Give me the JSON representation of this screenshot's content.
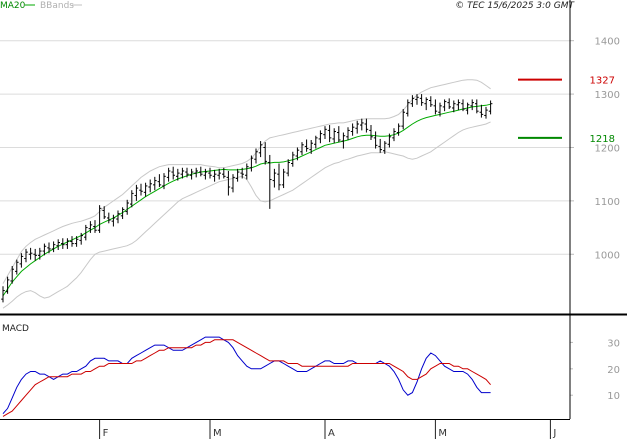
{
  "header": {
    "legend": [
      {
        "label": "MA20",
        "color": "#00aa00"
      },
      {
        "label": "BBands",
        "color": "#c0c0c0"
      }
    ],
    "copyright": "© TEC 15/6/2025 3:0 GMT"
  },
  "chart_data": [
    {
      "type": "candlestick",
      "grid": true,
      "ylim": [
        890,
        1450
      ],
      "y_ticks": [
        1000,
        1100,
        1200,
        1300,
        1400
      ],
      "y_tick_labels": [
        "1000",
        "1100",
        "1200",
        "1300",
        "1400"
      ],
      "x_ticks": [
        {
          "label": "F",
          "index": 21
        },
        {
          "label": "M",
          "index": 45
        },
        {
          "label": "A",
          "index": 70
        },
        {
          "label": "M",
          "index": 94
        },
        {
          "label": "J",
          "index": 119
        }
      ],
      "series_ohlc": [
        [
          916,
          940,
          910,
          932
        ],
        [
          930,
          958,
          926,
          952
        ],
        [
          950,
          978,
          945,
          972
        ],
        [
          968,
          990,
          962,
          985
        ],
        [
          982,
          1002,
          975,
          996
        ],
        [
          992,
          1010,
          985,
          1004
        ],
        [
          1000,
          1012,
          990,
          1002
        ],
        [
          1000,
          1010,
          988,
          998
        ],
        [
          998,
          1012,
          990,
          1006
        ],
        [
          1006,
          1020,
          998,
          1015
        ],
        [
          1012,
          1022,
          1002,
          1010
        ],
        [
          1010,
          1024,
          1004,
          1018
        ],
        [
          1016,
          1028,
          1008,
          1022
        ],
        [
          1020,
          1030,
          1010,
          1018
        ],
        [
          1018,
          1030,
          1010,
          1025
        ],
        [
          1024,
          1034,
          1014,
          1020
        ],
        [
          1020,
          1034,
          1014,
          1028
        ],
        [
          1026,
          1040,
          1018,
          1035
        ],
        [
          1032,
          1055,
          1026,
          1050
        ],
        [
          1048,
          1062,
          1040,
          1055
        ],
        [
          1052,
          1064,
          1040,
          1045
        ],
        [
          1045,
          1092,
          1040,
          1086
        ],
        [
          1082,
          1090,
          1066,
          1070
        ],
        [
          1068,
          1078,
          1058,
          1064
        ],
        [
          1062,
          1074,
          1052,
          1068
        ],
        [
          1066,
          1082,
          1058,
          1076
        ],
        [
          1072,
          1088,
          1066,
          1084
        ],
        [
          1080,
          1102,
          1074,
          1096
        ],
        [
          1094,
          1120,
          1088,
          1114
        ],
        [
          1110,
          1130,
          1100,
          1124
        ],
        [
          1120,
          1132,
          1110,
          1118
        ],
        [
          1116,
          1134,
          1108,
          1128
        ],
        [
          1126,
          1140,
          1116,
          1132
        ],
        [
          1130,
          1145,
          1120,
          1138
        ],
        [
          1136,
          1150,
          1126,
          1130
        ],
        [
          1128,
          1152,
          1122,
          1146
        ],
        [
          1144,
          1162,
          1136,
          1156
        ],
        [
          1154,
          1164,
          1140,
          1148
        ],
        [
          1146,
          1160,
          1138,
          1152
        ],
        [
          1150,
          1162,
          1142,
          1156
        ],
        [
          1154,
          1162,
          1144,
          1150
        ],
        [
          1148,
          1160,
          1140,
          1154
        ],
        [
          1152,
          1162,
          1144,
          1156
        ],
        [
          1154,
          1164,
          1146,
          1150
        ],
        [
          1148,
          1160,
          1140,
          1154
        ],
        [
          1152,
          1162,
          1142,
          1148
        ],
        [
          1146,
          1158,
          1136,
          1150
        ],
        [
          1148,
          1160,
          1140,
          1152
        ],
        [
          1150,
          1162,
          1142,
          1146
        ],
        [
          1144,
          1156,
          1110,
          1126
        ],
        [
          1124,
          1150,
          1116,
          1144
        ],
        [
          1142,
          1160,
          1136,
          1154
        ],
        [
          1152,
          1162,
          1142,
          1150
        ],
        [
          1148,
          1170,
          1140,
          1164
        ],
        [
          1162,
          1185,
          1155,
          1180
        ],
        [
          1178,
          1198,
          1170,
          1192
        ],
        [
          1190,
          1212,
          1182,
          1205
        ],
        [
          1200,
          1210,
          1168,
          1174
        ],
        [
          1172,
          1186,
          1085,
          1140
        ],
        [
          1138,
          1160,
          1125,
          1152
        ],
        [
          1150,
          1170,
          1120,
          1130
        ],
        [
          1130,
          1160,
          1124,
          1154
        ],
        [
          1152,
          1178,
          1146,
          1172
        ],
        [
          1170,
          1192,
          1164,
          1186
        ],
        [
          1184,
          1200,
          1176,
          1195
        ],
        [
          1192,
          1210,
          1186,
          1205
        ],
        [
          1202,
          1215,
          1192,
          1198
        ],
        [
          1196,
          1214,
          1188,
          1208
        ],
        [
          1206,
          1222,
          1198,
          1218
        ],
        [
          1216,
          1232,
          1208,
          1226
        ],
        [
          1224,
          1240,
          1216,
          1234
        ],
        [
          1232,
          1242,
          1210,
          1218
        ],
        [
          1216,
          1236,
          1208,
          1230
        ],
        [
          1228,
          1240,
          1210,
          1214
        ],
        [
          1212,
          1228,
          1198,
          1222
        ],
        [
          1220,
          1238,
          1214,
          1232
        ],
        [
          1230,
          1245,
          1222,
          1238
        ],
        [
          1236,
          1250,
          1226,
          1244
        ],
        [
          1242,
          1254,
          1232,
          1246
        ],
        [
          1244,
          1254,
          1228,
          1234
        ],
        [
          1232,
          1242,
          1214,
          1220
        ],
        [
          1218,
          1230,
          1198,
          1204
        ],
        [
          1202,
          1216,
          1190,
          1196
        ],
        [
          1194,
          1212,
          1188,
          1208
        ],
        [
          1206,
          1226,
          1200,
          1220
        ],
        [
          1218,
          1236,
          1212,
          1230
        ],
        [
          1228,
          1245,
          1222,
          1240
        ],
        [
          1240,
          1272,
          1234,
          1266
        ],
        [
          1264,
          1290,
          1258,
          1284
        ],
        [
          1282,
          1298,
          1276,
          1292
        ],
        [
          1290,
          1300,
          1280,
          1294
        ],
        [
          1292,
          1300,
          1278,
          1284
        ],
        [
          1282,
          1294,
          1270,
          1290
        ],
        [
          1288,
          1296,
          1276,
          1280
        ],
        [
          1278,
          1290,
          1262,
          1268
        ],
        [
          1266,
          1284,
          1258,
          1278
        ],
        [
          1276,
          1290,
          1268,
          1286
        ],
        [
          1284,
          1292,
          1272,
          1276
        ],
        [
          1274,
          1288,
          1266,
          1282
        ],
        [
          1280,
          1290,
          1270,
          1284
        ],
        [
          1282,
          1290,
          1268,
          1272
        ],
        [
          1270,
          1284,
          1262,
          1280
        ],
        [
          1278,
          1290,
          1270,
          1284
        ],
        [
          1282,
          1290,
          1264,
          1268
        ],
        [
          1266,
          1280,
          1256,
          1262
        ],
        [
          1260,
          1276,
          1254,
          1270
        ],
        [
          1268,
          1288,
          1262,
          1282
        ]
      ],
      "ma20": [
        922,
        935,
        948,
        958,
        968,
        975,
        982,
        988,
        994,
        1000,
        1005,
        1010,
        1015,
        1019,
        1023,
        1027,
        1031,
        1035,
        1040,
        1045,
        1050,
        1056,
        1060,
        1064,
        1068,
        1073,
        1078,
        1084,
        1090,
        1096,
        1102,
        1108,
        1113,
        1118,
        1123,
        1128,
        1133,
        1137,
        1141,
        1144,
        1147,
        1150,
        1152,
        1154,
        1155,
        1156,
        1157,
        1158,
        1159,
        1158,
        1158,
        1158,
        1159,
        1160,
        1162,
        1165,
        1169,
        1171,
        1171,
        1172,
        1172,
        1173,
        1175,
        1177,
        1180,
        1184,
        1188,
        1192,
        1196,
        1200,
        1204,
        1206,
        1208,
        1210,
        1212,
        1214,
        1217,
        1220,
        1222,
        1223,
        1223,
        1222,
        1221,
        1221,
        1222,
        1224,
        1227,
        1232,
        1238,
        1244,
        1249,
        1253,
        1256,
        1258,
        1260,
        1262,
        1264,
        1266,
        1268,
        1270,
        1272,
        1274,
        1276,
        1277,
        1278,
        1279,
        1281
      ],
      "bb_upper": [
        945,
        960,
        975,
        990,
        1005,
        1015,
        1022,
        1028,
        1032,
        1036,
        1040,
        1044,
        1048,
        1052,
        1055,
        1058,
        1060,
        1062,
        1065,
        1068,
        1072,
        1080,
        1088,
        1094,
        1100,
        1106,
        1112,
        1120,
        1128,
        1136,
        1144,
        1150,
        1156,
        1160,
        1164,
        1166,
        1168,
        1168,
        1168,
        1168,
        1168,
        1168,
        1168,
        1168,
        1166,
        1165,
        1164,
        1162,
        1162,
        1164,
        1166,
        1168,
        1170,
        1174,
        1180,
        1190,
        1202,
        1212,
        1218,
        1220,
        1222,
        1224,
        1226,
        1228,
        1230,
        1232,
        1234,
        1236,
        1238,
        1240,
        1242,
        1244,
        1245,
        1246,
        1246,
        1248,
        1250,
        1252,
        1253,
        1254,
        1254,
        1254,
        1254,
        1254,
        1255,
        1258,
        1262,
        1270,
        1280,
        1290,
        1298,
        1304,
        1308,
        1312,
        1314,
        1316,
        1318,
        1320,
        1322,
        1324,
        1326,
        1327,
        1327,
        1326,
        1322,
        1316,
        1310
      ],
      "bb_lower": [
        899,
        905,
        912,
        920,
        926,
        930,
        932,
        928,
        922,
        918,
        920,
        925,
        930,
        935,
        940,
        948,
        956,
        966,
        978,
        990,
        1000,
        1004,
        1006,
        1008,
        1010,
        1012,
        1014,
        1016,
        1020,
        1026,
        1034,
        1042,
        1050,
        1058,
        1066,
        1074,
        1082,
        1090,
        1098,
        1104,
        1108,
        1112,
        1116,
        1120,
        1124,
        1128,
        1132,
        1136,
        1138,
        1140,
        1142,
        1144,
        1146,
        1140,
        1126,
        1110,
        1100,
        1098,
        1100,
        1104,
        1108,
        1112,
        1116,
        1120,
        1126,
        1132,
        1138,
        1144,
        1150,
        1156,
        1162,
        1166,
        1170,
        1172,
        1176,
        1178,
        1181,
        1184,
        1186,
        1188,
        1190,
        1190,
        1190,
        1192,
        1190,
        1188,
        1186,
        1184,
        1180,
        1178,
        1180,
        1184,
        1188,
        1192,
        1198,
        1204,
        1210,
        1216,
        1222,
        1228,
        1233,
        1236,
        1238,
        1240,
        1242,
        1244,
        1248
      ],
      "levels": [
        {
          "value": 1327,
          "label": "1327",
          "color": "#cc0000"
        },
        {
          "value": 1218,
          "label": "1218",
          "color": "#008800"
        }
      ]
    },
    {
      "type": "line",
      "title": "MACD",
      "grid": false,
      "ylim": [
        1,
        40
      ],
      "y_ticks": [
        10,
        20,
        30
      ],
      "y_tick_labels": [
        "10",
        "20",
        "30"
      ],
      "series": [
        {
          "name": "macd",
          "color": "#0000cc",
          "values": [
            3,
            5,
            9,
            13,
            16,
            18,
            19,
            19,
            18,
            18,
            17,
            16,
            17,
            18,
            18,
            19,
            19,
            20,
            21,
            23,
            24,
            24,
            24,
            23,
            23,
            23,
            22,
            22,
            24,
            25,
            26,
            27,
            28,
            29,
            29,
            29,
            28,
            27,
            27,
            27,
            28,
            29,
            30,
            31,
            32,
            32,
            32,
            32,
            31,
            30,
            28,
            25,
            23,
            21,
            20,
            20,
            20,
            21,
            22,
            23,
            23,
            22,
            21,
            20,
            19,
            19,
            19,
            20,
            21,
            22,
            23,
            23,
            22,
            22,
            22,
            23,
            23,
            22,
            22,
            22,
            22,
            22,
            23,
            22,
            21,
            19,
            16,
            12,
            10,
            11,
            15,
            20,
            24,
            26,
            25,
            23,
            21,
            20,
            19,
            19,
            19,
            18,
            16,
            13,
            11,
            11,
            11
          ]
        },
        {
          "name": "signal",
          "color": "#cc0000",
          "values": [
            2,
            3,
            4,
            6,
            8,
            10,
            12,
            14,
            15,
            16,
            17,
            17,
            17,
            17,
            17,
            18,
            18,
            18,
            19,
            19,
            20,
            21,
            21,
            22,
            22,
            22,
            22,
            22,
            22,
            23,
            23,
            24,
            25,
            26,
            27,
            27,
            28,
            28,
            28,
            28,
            28,
            28,
            29,
            29,
            30,
            30,
            31,
            31,
            31,
            31,
            31,
            30,
            29,
            28,
            27,
            26,
            25,
            24,
            23,
            23,
            23,
            23,
            22,
            22,
            22,
            21,
            21,
            21,
            21,
            21,
            21,
            21,
            21,
            21,
            21,
            21,
            22,
            22,
            22,
            22,
            22,
            22,
            22,
            22,
            22,
            21,
            20,
            19,
            17,
            16,
            16,
            17,
            18,
            20,
            21,
            22,
            22,
            22,
            21,
            21,
            20,
            20,
            19,
            18,
            17,
            16,
            14
          ]
        }
      ]
    }
  ]
}
